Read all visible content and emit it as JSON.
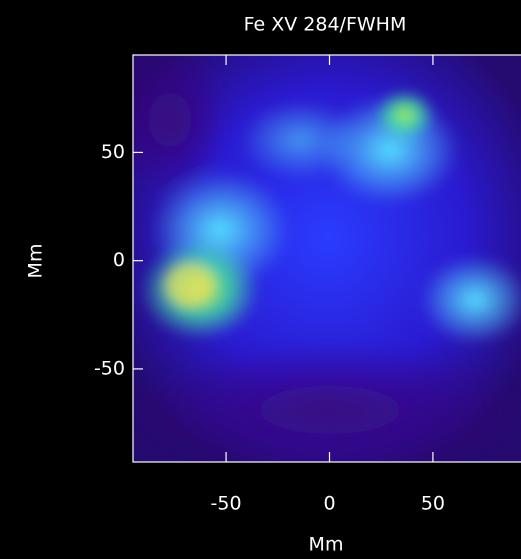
{
  "chart_data": {
    "type": "image",
    "title": "Fe XV 284/FWHM",
    "x_label": "Mm",
    "y_label": "Mm",
    "xlim": [
      -95,
      95
    ],
    "ylim": [
      -93,
      95
    ],
    "xticks": [
      -50,
      0,
      50
    ],
    "yticks": [
      -50,
      0,
      50
    ]
  }
}
